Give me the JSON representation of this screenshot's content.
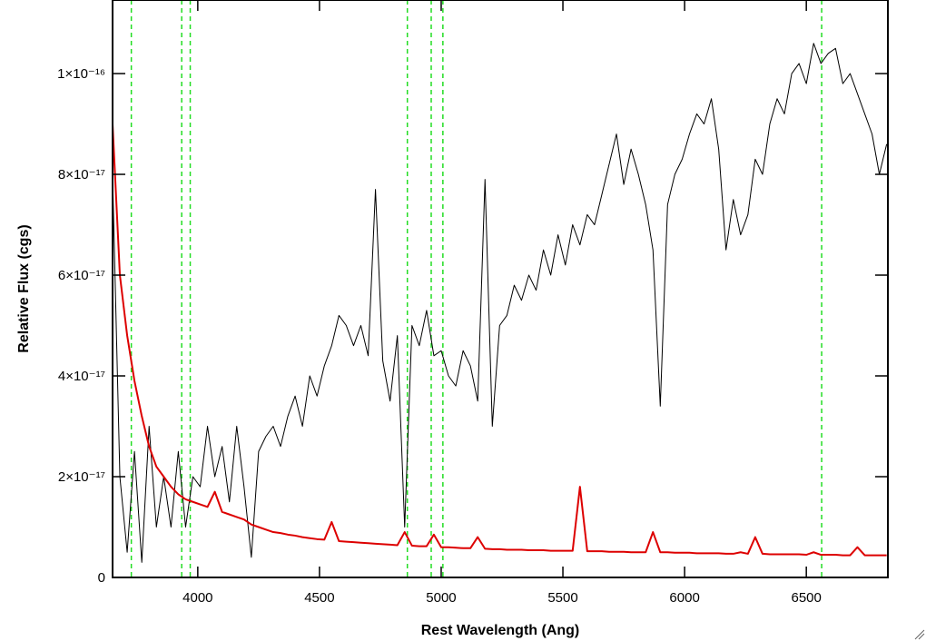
{
  "chart_data": {
    "type": "line",
    "xlabel": "Rest Wavelength (Ang)",
    "ylabel": "Relative Flux (cgs)",
    "xlim": [
      3650,
      6835
    ],
    "ylim": [
      0,
      1.146e-16
    ],
    "xticks": [
      4000,
      4500,
      5000,
      5500,
      6000,
      6500
    ],
    "yticks": [
      0,
      {
        "value": 2e-17,
        "label": "2×10⁻¹⁷"
      },
      {
        "value": 4e-17,
        "label": "4×10⁻¹⁷"
      },
      {
        "value": 6e-17,
        "label": "6×10⁻¹⁷"
      },
      {
        "value": 8e-17,
        "label": "8×10⁻¹⁷"
      },
      {
        "value": 1e-16,
        "label": "1×10⁻¹⁶"
      }
    ],
    "vlines": [
      3727,
      3934,
      3969,
      4861,
      4959,
      5007,
      6563
    ],
    "vline_color": "#22dd22",
    "x": [
      3650,
      3680,
      3710,
      3740,
      3770,
      3800,
      3830,
      3860,
      3890,
      3920,
      3950,
      3980,
      4010,
      4040,
      4070,
      4100,
      4130,
      4160,
      4190,
      4220,
      4250,
      4280,
      4310,
      4340,
      4370,
      4400,
      4430,
      4460,
      4490,
      4520,
      4550,
      4580,
      4610,
      4640,
      4670,
      4700,
      4730,
      4760,
      4790,
      4820,
      4850,
      4880,
      4910,
      4940,
      4970,
      5000,
      5030,
      5060,
      5090,
      5120,
      5150,
      5180,
      5210,
      5240,
      5270,
      5300,
      5330,
      5360,
      5390,
      5420,
      5450,
      5480,
      5510,
      5540,
      5570,
      5600,
      5630,
      5660,
      5690,
      5720,
      5750,
      5780,
      5810,
      5840,
      5870,
      5900,
      5930,
      5960,
      5990,
      6020,
      6050,
      6080,
      6110,
      6140,
      6170,
      6200,
      6230,
      6260,
      6290,
      6320,
      6350,
      6380,
      6410,
      6440,
      6470,
      6500,
      6530,
      6560,
      6590,
      6620,
      6650,
      6680,
      6710,
      6740,
      6770,
      6800,
      6830
    ],
    "series": [
      {
        "color": "#000000",
        "width": 1,
        "values": [
          8e-17,
          2e-17,
          5e-18,
          2.5e-17,
          3e-18,
          3e-17,
          1e-17,
          2e-17,
          1e-17,
          2.5e-17,
          1e-17,
          2e-17,
          1.8e-17,
          3e-17,
          2e-17,
          2.6e-17,
          1.5e-17,
          3e-17,
          1.8e-17,
          4e-18,
          2.5e-17,
          2.8e-17,
          3e-17,
          2.6e-17,
          3.2e-17,
          3.6e-17,
          3e-17,
          4e-17,
          3.6e-17,
          4.2e-17,
          4.6e-17,
          5.2e-17,
          5e-17,
          4.6e-17,
          5e-17,
          4.4e-17,
          7.7e-17,
          4.3e-17,
          3.5e-17,
          4.8e-17,
          1e-17,
          5e-17,
          4.6e-17,
          5.3e-17,
          4.4e-17,
          4.5e-17,
          4e-17,
          3.8e-17,
          4.5e-17,
          4.2e-17,
          3.5e-17,
          7.9e-17,
          3e-17,
          5e-17,
          5.2e-17,
          5.8e-17,
          5.5e-17,
          6e-17,
          5.7e-17,
          6.5e-17,
          6e-17,
          6.8e-17,
          6.2e-17,
          7e-17,
          6.6e-17,
          7.2e-17,
          7e-17,
          7.6e-17,
          8.2e-17,
          8.8e-17,
          7.8e-17,
          8.5e-17,
          8e-17,
          7.4e-17,
          6.5e-17,
          3.4e-17,
          7.4e-17,
          8e-17,
          8.3e-17,
          8.8e-17,
          9.2e-17,
          9e-17,
          9.5e-17,
          8.5e-17,
          6.5e-17,
          7.5e-17,
          6.8e-17,
          7.2e-17,
          8.3e-17,
          8e-17,
          9e-17,
          9.5e-17,
          9.2e-17,
          1e-16,
          1.02e-16,
          9.8e-17,
          1.06e-16,
          1.02e-16,
          1.04e-16,
          1.05e-16,
          9.8e-17,
          1e-16,
          9.6e-17,
          9.2e-17,
          8.8e-17,
          8e-17,
          8.6e-17
        ]
      },
      {
        "color": "#dd0000",
        "width": 2,
        "values": [
          9e-17,
          6e-17,
          4.8e-17,
          3.9e-17,
          3.2e-17,
          2.6e-17,
          2.2e-17,
          2e-17,
          1.8e-17,
          1.65e-17,
          1.55e-17,
          1.5e-17,
          1.45e-17,
          1.4e-17,
          1.7e-17,
          1.3e-17,
          1.25e-17,
          1.2e-17,
          1.15e-17,
          1.05e-17,
          1e-17,
          9.5e-18,
          9e-18,
          8.8e-18,
          8.5e-18,
          8.3e-18,
          8e-18,
          7.8e-18,
          7.6e-18,
          7.5e-18,
          1.1e-17,
          7.2e-18,
          7.1e-18,
          7e-18,
          6.9e-18,
          6.8e-18,
          6.7e-18,
          6.6e-18,
          6.5e-18,
          6.4e-18,
          9e-18,
          6.3e-18,
          6.2e-18,
          6.2e-18,
          8.5e-18,
          6e-18,
          6e-18,
          5.9e-18,
          5.8e-18,
          5.8e-18,
          8e-18,
          5.7e-18,
          5.6e-18,
          5.6e-18,
          5.5e-18,
          5.5e-18,
          5.5e-18,
          5.4e-18,
          5.4e-18,
          5.4e-18,
          5.3e-18,
          5.3e-18,
          5.3e-18,
          5.3e-18,
          1.8e-17,
          5.2e-18,
          5.2e-18,
          5.2e-18,
          5.1e-18,
          5.1e-18,
          5.1e-18,
          5e-18,
          5e-18,
          5e-18,
          9e-18,
          5e-18,
          5e-18,
          4.9e-18,
          4.9e-18,
          4.9e-18,
          4.8e-18,
          4.8e-18,
          4.8e-18,
          4.8e-18,
          4.7e-18,
          4.7e-18,
          5e-18,
          4.7e-18,
          8e-18,
          4.7e-18,
          4.6e-18,
          4.6e-18,
          4.6e-18,
          4.6e-18,
          4.6e-18,
          4.5e-18,
          5e-18,
          4.5e-18,
          4.5e-18,
          4.5e-18,
          4.4e-18,
          4.4e-18,
          6e-18,
          4.4e-18,
          4.4e-18,
          4.4e-18,
          4.4e-18
        ]
      }
    ]
  }
}
